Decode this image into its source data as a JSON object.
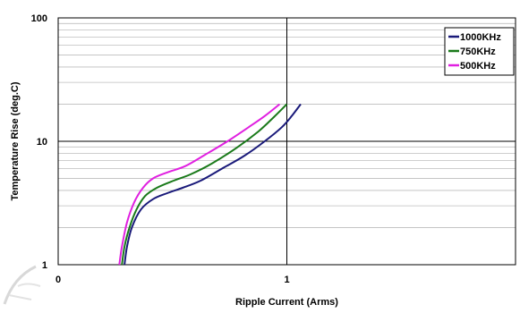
{
  "chart_data": {
    "type": "line",
    "title": "",
    "xlabel": "Ripple Current (Arms)",
    "ylabel": "Temperature Rise (deg.C)",
    "x_scale": "log",
    "y_scale": "log",
    "xlim": [
      0.1,
      10
    ],
    "ylim": [
      1,
      100
    ],
    "x_tick_labels": [
      "0",
      "1"
    ],
    "y_tick_labels": [
      "1",
      "10",
      "100"
    ],
    "grid": true,
    "legend_position": "top-right",
    "series": [
      {
        "name": "1000KHz",
        "color": "#1a1a7a",
        "points": [
          [
            0.195,
            1.0
          ],
          [
            0.2,
            1.4
          ],
          [
            0.21,
            2.0
          ],
          [
            0.23,
            2.8
          ],
          [
            0.26,
            3.4
          ],
          [
            0.3,
            3.8
          ],
          [
            0.35,
            4.2
          ],
          [
            0.42,
            4.8
          ],
          [
            0.52,
            6.0
          ],
          [
            0.65,
            7.6
          ],
          [
            0.8,
            10.0
          ],
          [
            0.95,
            13.0
          ],
          [
            1.05,
            16.0
          ],
          [
            1.15,
            20.0
          ]
        ]
      },
      {
        "name": "750KHz",
        "color": "#1a7a1a",
        "points": [
          [
            0.19,
            1.0
          ],
          [
            0.195,
            1.4
          ],
          [
            0.205,
            2.0
          ],
          [
            0.22,
            2.8
          ],
          [
            0.24,
            3.6
          ],
          [
            0.27,
            4.2
          ],
          [
            0.32,
            4.8
          ],
          [
            0.38,
            5.4
          ],
          [
            0.47,
            6.6
          ],
          [
            0.6,
            8.8
          ],
          [
            0.75,
            12.0
          ],
          [
            0.88,
            15.8
          ],
          [
            1.0,
            20.0
          ]
        ]
      },
      {
        "name": "500KHz",
        "color": "#e020e0",
        "points": [
          [
            0.185,
            1.0
          ],
          [
            0.19,
            1.4
          ],
          [
            0.2,
            2.2
          ],
          [
            0.215,
            3.2
          ],
          [
            0.235,
            4.2
          ],
          [
            0.26,
            5.0
          ],
          [
            0.3,
            5.6
          ],
          [
            0.36,
            6.3
          ],
          [
            0.44,
            7.8
          ],
          [
            0.55,
            10.0
          ],
          [
            0.68,
            13.0
          ],
          [
            0.8,
            16.0
          ],
          [
            0.93,
            20.0
          ]
        ]
      }
    ]
  }
}
